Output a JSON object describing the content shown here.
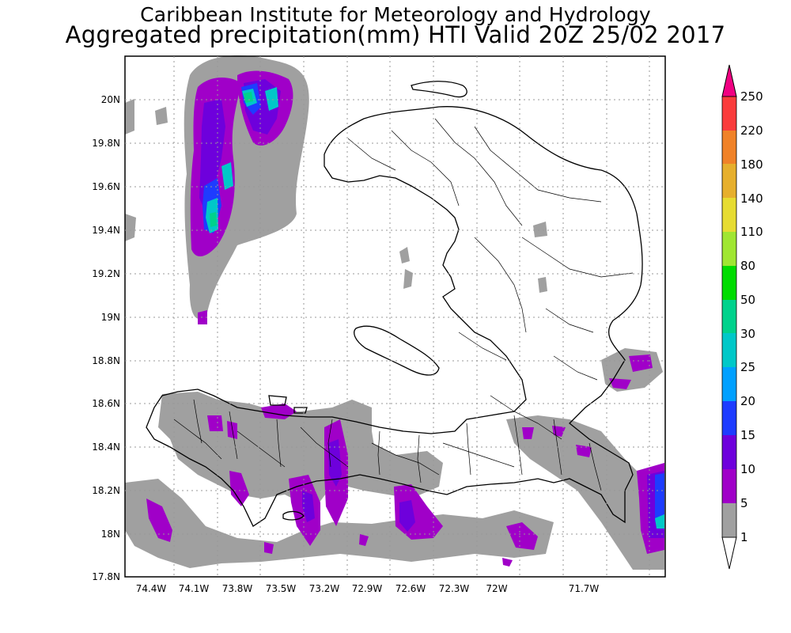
{
  "title": {
    "line1": "Caribbean Institute for Meteorology and Hydrology",
    "line2": "Aggregated precipitation(mm) HTI Valid 20Z 25/02 2017"
  },
  "map": {
    "region": "Haiti",
    "land_fill": "#ffffff",
    "coast_color": "#000000",
    "grid": "dotted",
    "lat_ticks": [
      "20N",
      "19.8N",
      "19.6N",
      "19.4N",
      "19.2N",
      "19N",
      "18.8N",
      "18.6N",
      "18.4N",
      "18.2N",
      "18N",
      "17.8N"
    ],
    "lon_ticks": [
      "74.4W",
      "74.1W",
      "73.8W",
      "73.5W",
      "73.2W",
      "72.9W",
      "72.6W",
      "72.3W",
      "72W",
      "71.7W"
    ]
  },
  "colorbar": {
    "labels": [
      "1",
      "5",
      "10",
      "15",
      "20",
      "25",
      "30",
      "50",
      "80",
      "110",
      "140",
      "180",
      "220",
      "250"
    ],
    "colors": [
      "#a0a0a0",
      "#a000c8",
      "#6e00dc",
      "#1e3cff",
      "#00a0ff",
      "#00c8c8",
      "#00d28c",
      "#00dc00",
      "#a0e632",
      "#e6dc32",
      "#e6af2d",
      "#f08228",
      "#fa3c3c",
      "#f00082"
    ]
  }
}
